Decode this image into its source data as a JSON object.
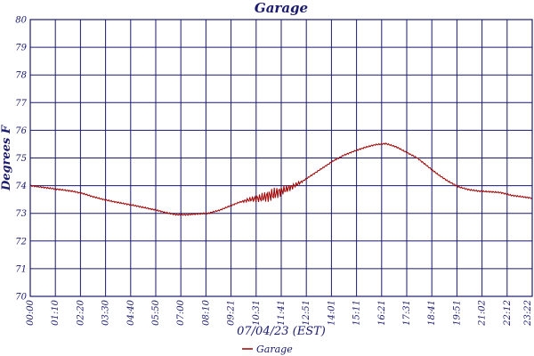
{
  "chart_data": {
    "type": "line",
    "title": "Garage",
    "xlabel": "07/04/23 (EST)",
    "ylabel": "Degrees F",
    "ylim": [
      70,
      80
    ],
    "yticks": [
      70,
      71,
      72,
      73,
      74,
      75,
      76,
      77,
      78,
      79,
      80
    ],
    "xticks": [
      "00:00",
      "01:10",
      "02:20",
      "03:30",
      "04:40",
      "05:50",
      "07:00",
      "08:10",
      "09:21",
      "10:31",
      "11:41",
      "12:51",
      "14:01",
      "15:11",
      "16:21",
      "17:31",
      "18:41",
      "19:51",
      "21:02",
      "22:12",
      "23:22"
    ],
    "grid": true,
    "legend": "bottom-center",
    "colors": {
      "line": "#a00000",
      "grid": "#1a1a6e",
      "text": "#1a1a6e"
    },
    "series": [
      {
        "name": "Garage",
        "x": [
          0,
          30,
          60,
          90,
          120,
          150,
          180,
          210,
          240,
          270,
          300,
          330,
          360,
          390,
          420,
          450,
          480,
          510,
          540,
          570,
          600,
          630,
          660,
          690,
          720,
          750,
          780,
          810,
          840,
          870,
          900,
          930,
          960,
          990,
          1020,
          1050,
          1080,
          1110,
          1140,
          1170,
          1200,
          1230,
          1260,
          1290,
          1320,
          1350,
          1380,
          1410,
          1439
        ],
        "y": [
          74.0,
          73.95,
          73.9,
          73.85,
          73.8,
          73.72,
          73.6,
          73.5,
          73.42,
          73.35,
          73.28,
          73.2,
          73.12,
          73.02,
          72.95,
          72.95,
          72.98,
          73.0,
          73.1,
          73.25,
          73.4,
          73.5,
          73.55,
          73.65,
          73.8,
          73.95,
          74.15,
          74.4,
          74.65,
          74.9,
          75.1,
          75.25,
          75.38,
          75.48,
          75.52,
          75.4,
          75.2,
          75.0,
          74.7,
          74.4,
          74.15,
          73.95,
          73.85,
          73.8,
          73.78,
          73.75,
          73.65,
          73.6,
          73.55
        ]
      }
    ]
  }
}
